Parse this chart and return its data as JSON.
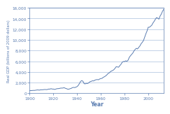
{
  "title": "",
  "xlabel": "Year",
  "ylabel": "Real GDP (billions of 2009 dollars)",
  "line_color": "#5b7db1",
  "grid_color": "#aabfdd",
  "spine_color": "#5b7db1",
  "tick_color": "#5b7db1",
  "label_color": "#5b7db1",
  "plot_bg_color": "#ffffff",
  "fig_bg_color": "#ffffff",
  "xlim": [
    1900,
    2013
  ],
  "ylim": [
    0,
    16000
  ],
  "yticks": [
    0,
    2000,
    4000,
    6000,
    8000,
    10000,
    12000,
    14000,
    16000
  ],
  "xticks": [
    1900,
    1920,
    1940,
    1960,
    1980,
    2000
  ],
  "gdp_data": {
    "years": [
      1900,
      1901,
      1902,
      1903,
      1904,
      1905,
      1906,
      1907,
      1908,
      1909,
      1910,
      1911,
      1912,
      1913,
      1914,
      1915,
      1916,
      1917,
      1918,
      1919,
      1920,
      1921,
      1922,
      1923,
      1924,
      1925,
      1926,
      1927,
      1928,
      1929,
      1930,
      1931,
      1932,
      1933,
      1934,
      1935,
      1936,
      1937,
      1938,
      1939,
      1940,
      1941,
      1942,
      1943,
      1944,
      1945,
      1946,
      1947,
      1948,
      1949,
      1950,
      1951,
      1952,
      1953,
      1954,
      1955,
      1956,
      1957,
      1958,
      1959,
      1960,
      1961,
      1962,
      1963,
      1964,
      1965,
      1966,
      1967,
      1968,
      1969,
      1970,
      1971,
      1972,
      1973,
      1974,
      1975,
      1976,
      1977,
      1978,
      1979,
      1980,
      1981,
      1982,
      1983,
      1984,
      1985,
      1986,
      1987,
      1988,
      1989,
      1990,
      1991,
      1992,
      1993,
      1994,
      1995,
      1996,
      1997,
      1998,
      1999,
      2000,
      2001,
      2002,
      2003,
      2004,
      2005,
      2006,
      2007,
      2008,
      2009,
      2010,
      2011,
      2012,
      2013
    ],
    "values": [
      500,
      510,
      530,
      550,
      545,
      580,
      620,
      640,
      590,
      650,
      660,
      670,
      700,
      720,
      690,
      720,
      800,
      790,
      870,
      800,
      800,
      730,
      790,
      870,
      880,
      910,
      970,
      980,
      990,
      1060,
      950,
      880,
      780,
      780,
      860,
      930,
      1060,
      1110,
      1070,
      1160,
      1260,
      1490,
      1850,
      2240,
      2390,
      2230,
      1790,
      1780,
      1860,
      1840,
      2010,
      2180,
      2250,
      2350,
      2310,
      2470,
      2540,
      2580,
      2530,
      2680,
      2760,
      2800,
      2980,
      3100,
      3240,
      3430,
      3680,
      3810,
      4020,
      4180,
      4270,
      4420,
      4680,
      4980,
      4940,
      4880,
      5170,
      5430,
      5790,
      5960,
      5930,
      6090,
      5980,
      6190,
      6720,
      7020,
      7280,
      7530,
      7940,
      8210,
      8420,
      8300,
      8600,
      8860,
      9280,
      9540,
      9870,
      10490,
      11120,
      11650,
      12360,
      12350,
      12540,
      12740,
      13150,
      13460,
      13840,
      14160,
      14060,
      13870,
      14440,
      14800,
      15310,
      15700
    ]
  }
}
